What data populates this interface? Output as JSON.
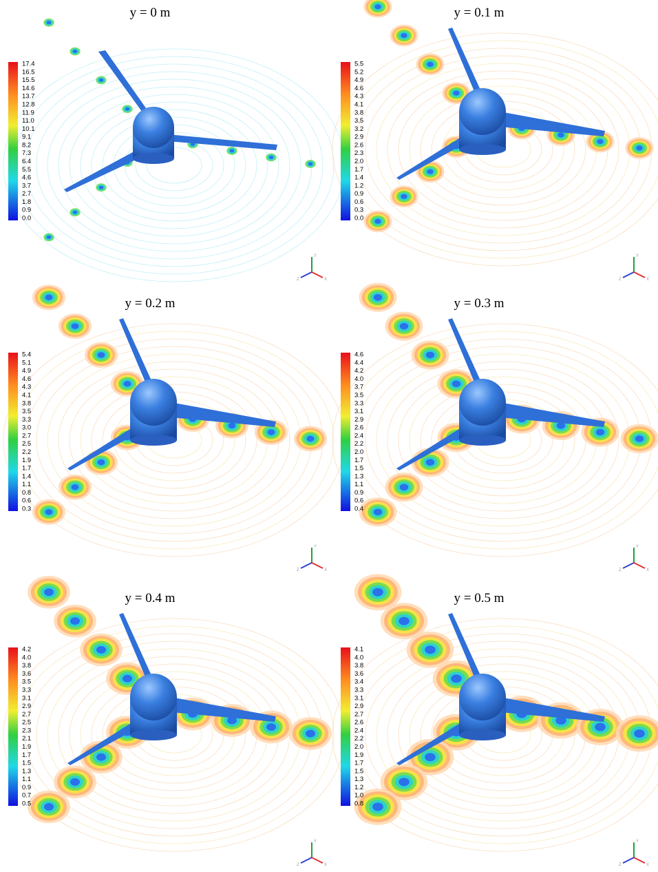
{
  "figure": {
    "panels": [
      {
        "title": "y = 0 m",
        "colorbar": [
          "17.4",
          "16.5",
          "15.5",
          "14.6",
          "13.7",
          "12.8",
          "11.9",
          "11.0",
          "10.1",
          "9.1",
          "8.2",
          "7.3",
          "6.4",
          "5.5",
          "4.6",
          "3.7",
          "2.7",
          "1.8",
          "0.9",
          "0.0"
        ]
      },
      {
        "title": "y = 0.1 m",
        "colorbar": [
          "5.5",
          "5.2",
          "4.9",
          "4.6",
          "4.3",
          "4.1",
          "3.8",
          "3.5",
          "3.2",
          "2.9",
          "2.6",
          "2.3",
          "2.0",
          "1.7",
          "1.4",
          "1.2",
          "0.9",
          "0.6",
          "0.3",
          "0.0"
        ]
      },
      {
        "title": "y = 0.2 m",
        "colorbar": [
          "5.4",
          "5.1",
          "4.9",
          "4.6",
          "4.3",
          "4.1",
          "3.8",
          "3.5",
          "3.3",
          "3.0",
          "2.7",
          "2.5",
          "2.2",
          "1.9",
          "1.7",
          "1.4",
          "1.1",
          "0.8",
          "0.6",
          "0.3"
        ]
      },
      {
        "title": "y = 0.3 m",
        "colorbar": [
          "4.6",
          "4.4",
          "4.2",
          "4.0",
          "3.7",
          "3.5",
          "3.3",
          "3.1",
          "2.9",
          "2.6",
          "2.4",
          "2.2",
          "2.0",
          "1.7",
          "1.5",
          "1.3",
          "1.1",
          "0.9",
          "0.6",
          "0.4"
        ]
      },
      {
        "title": "y = 0.4 m",
        "colorbar": [
          "4.2",
          "4.0",
          "3.8",
          "3.6",
          "3.5",
          "3.3",
          "3.1",
          "2.9",
          "2.7",
          "2.5",
          "2.3",
          "2.1",
          "1.9",
          "1.7",
          "1.5",
          "1.3",
          "1.1",
          "0.9",
          "0.7",
          "0.5"
        ]
      },
      {
        "title": "y = 0.5 m",
        "colorbar": [
          "4.1",
          "4.0",
          "3.8",
          "3.6",
          "3.4",
          "3.3",
          "3.1",
          "2.9",
          "2.7",
          "2.6",
          "2.4",
          "2.2",
          "2.0",
          "1.9",
          "1.7",
          "1.5",
          "1.3",
          "1.2",
          "1.0",
          "0.8"
        ]
      }
    ],
    "triad": [
      "Y",
      "X",
      "Z"
    ]
  }
}
